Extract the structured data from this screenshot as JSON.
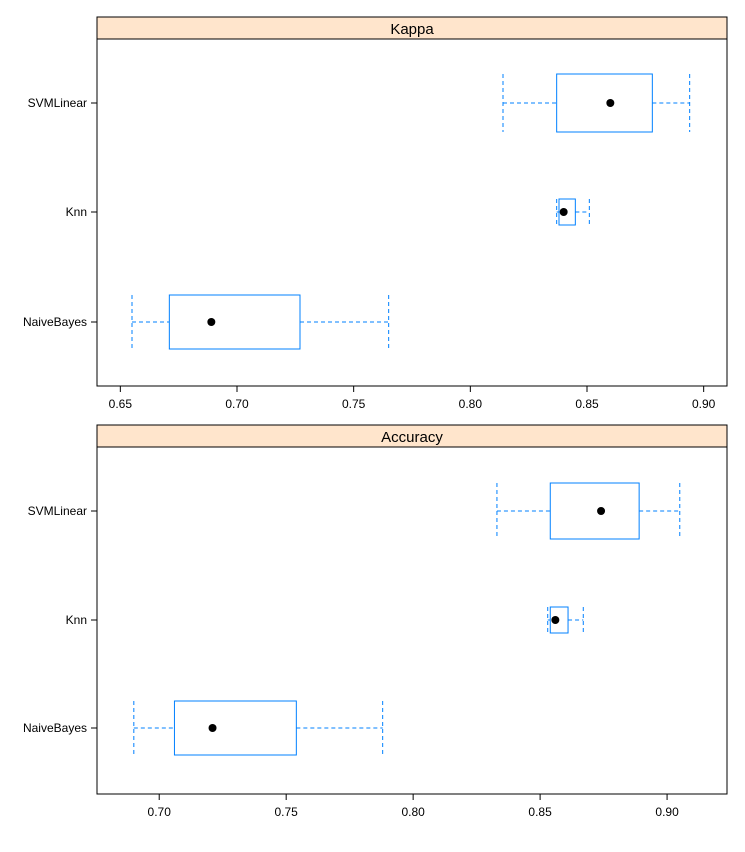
{
  "colors": {
    "strip_fill": "#ffe5cc",
    "box_stroke": "#0080ff",
    "median_dot": "#000000",
    "frame": "#000000"
  },
  "chart_data": [
    {
      "type": "boxplot",
      "title": "Kappa",
      "categories": [
        "SVMLinear",
        "Knn",
        "NaiveBayes"
      ],
      "xlim": [
        0.64,
        0.91
      ],
      "ticks": [
        "0.65",
        "0.70",
        "0.75",
        "0.80",
        "0.85",
        "0.90"
      ],
      "boxes": [
        {
          "name": "SVMLinear",
          "min": 0.814,
          "q1": 0.837,
          "median": 0.86,
          "q3": 0.878,
          "max": 0.894
        },
        {
          "name": "Knn",
          "min": 0.837,
          "q1": 0.838,
          "median": 0.84,
          "q3": 0.845,
          "max": 0.851
        },
        {
          "name": "NaiveBayes",
          "min": 0.655,
          "q1": 0.671,
          "median": 0.689,
          "q3": 0.727,
          "max": 0.765
        }
      ]
    },
    {
      "type": "boxplot",
      "title": "Accuracy",
      "categories": [
        "SVMLinear",
        "Knn",
        "NaiveBayes"
      ],
      "xlim": [
        0.6755,
        0.9236
      ],
      "ticks": [
        "0.70",
        "0.75",
        "0.80",
        "0.85",
        "0.90"
      ],
      "boxes": [
        {
          "name": "SVMLinear",
          "min": 0.833,
          "q1": 0.854,
          "median": 0.874,
          "q3": 0.889,
          "max": 0.905
        },
        {
          "name": "Knn",
          "min": 0.853,
          "q1": 0.854,
          "median": 0.856,
          "q3": 0.861,
          "max": 0.867
        },
        {
          "name": "NaiveBayes",
          "min": 0.69,
          "q1": 0.706,
          "median": 0.721,
          "q3": 0.754,
          "max": 0.788
        }
      ]
    }
  ]
}
